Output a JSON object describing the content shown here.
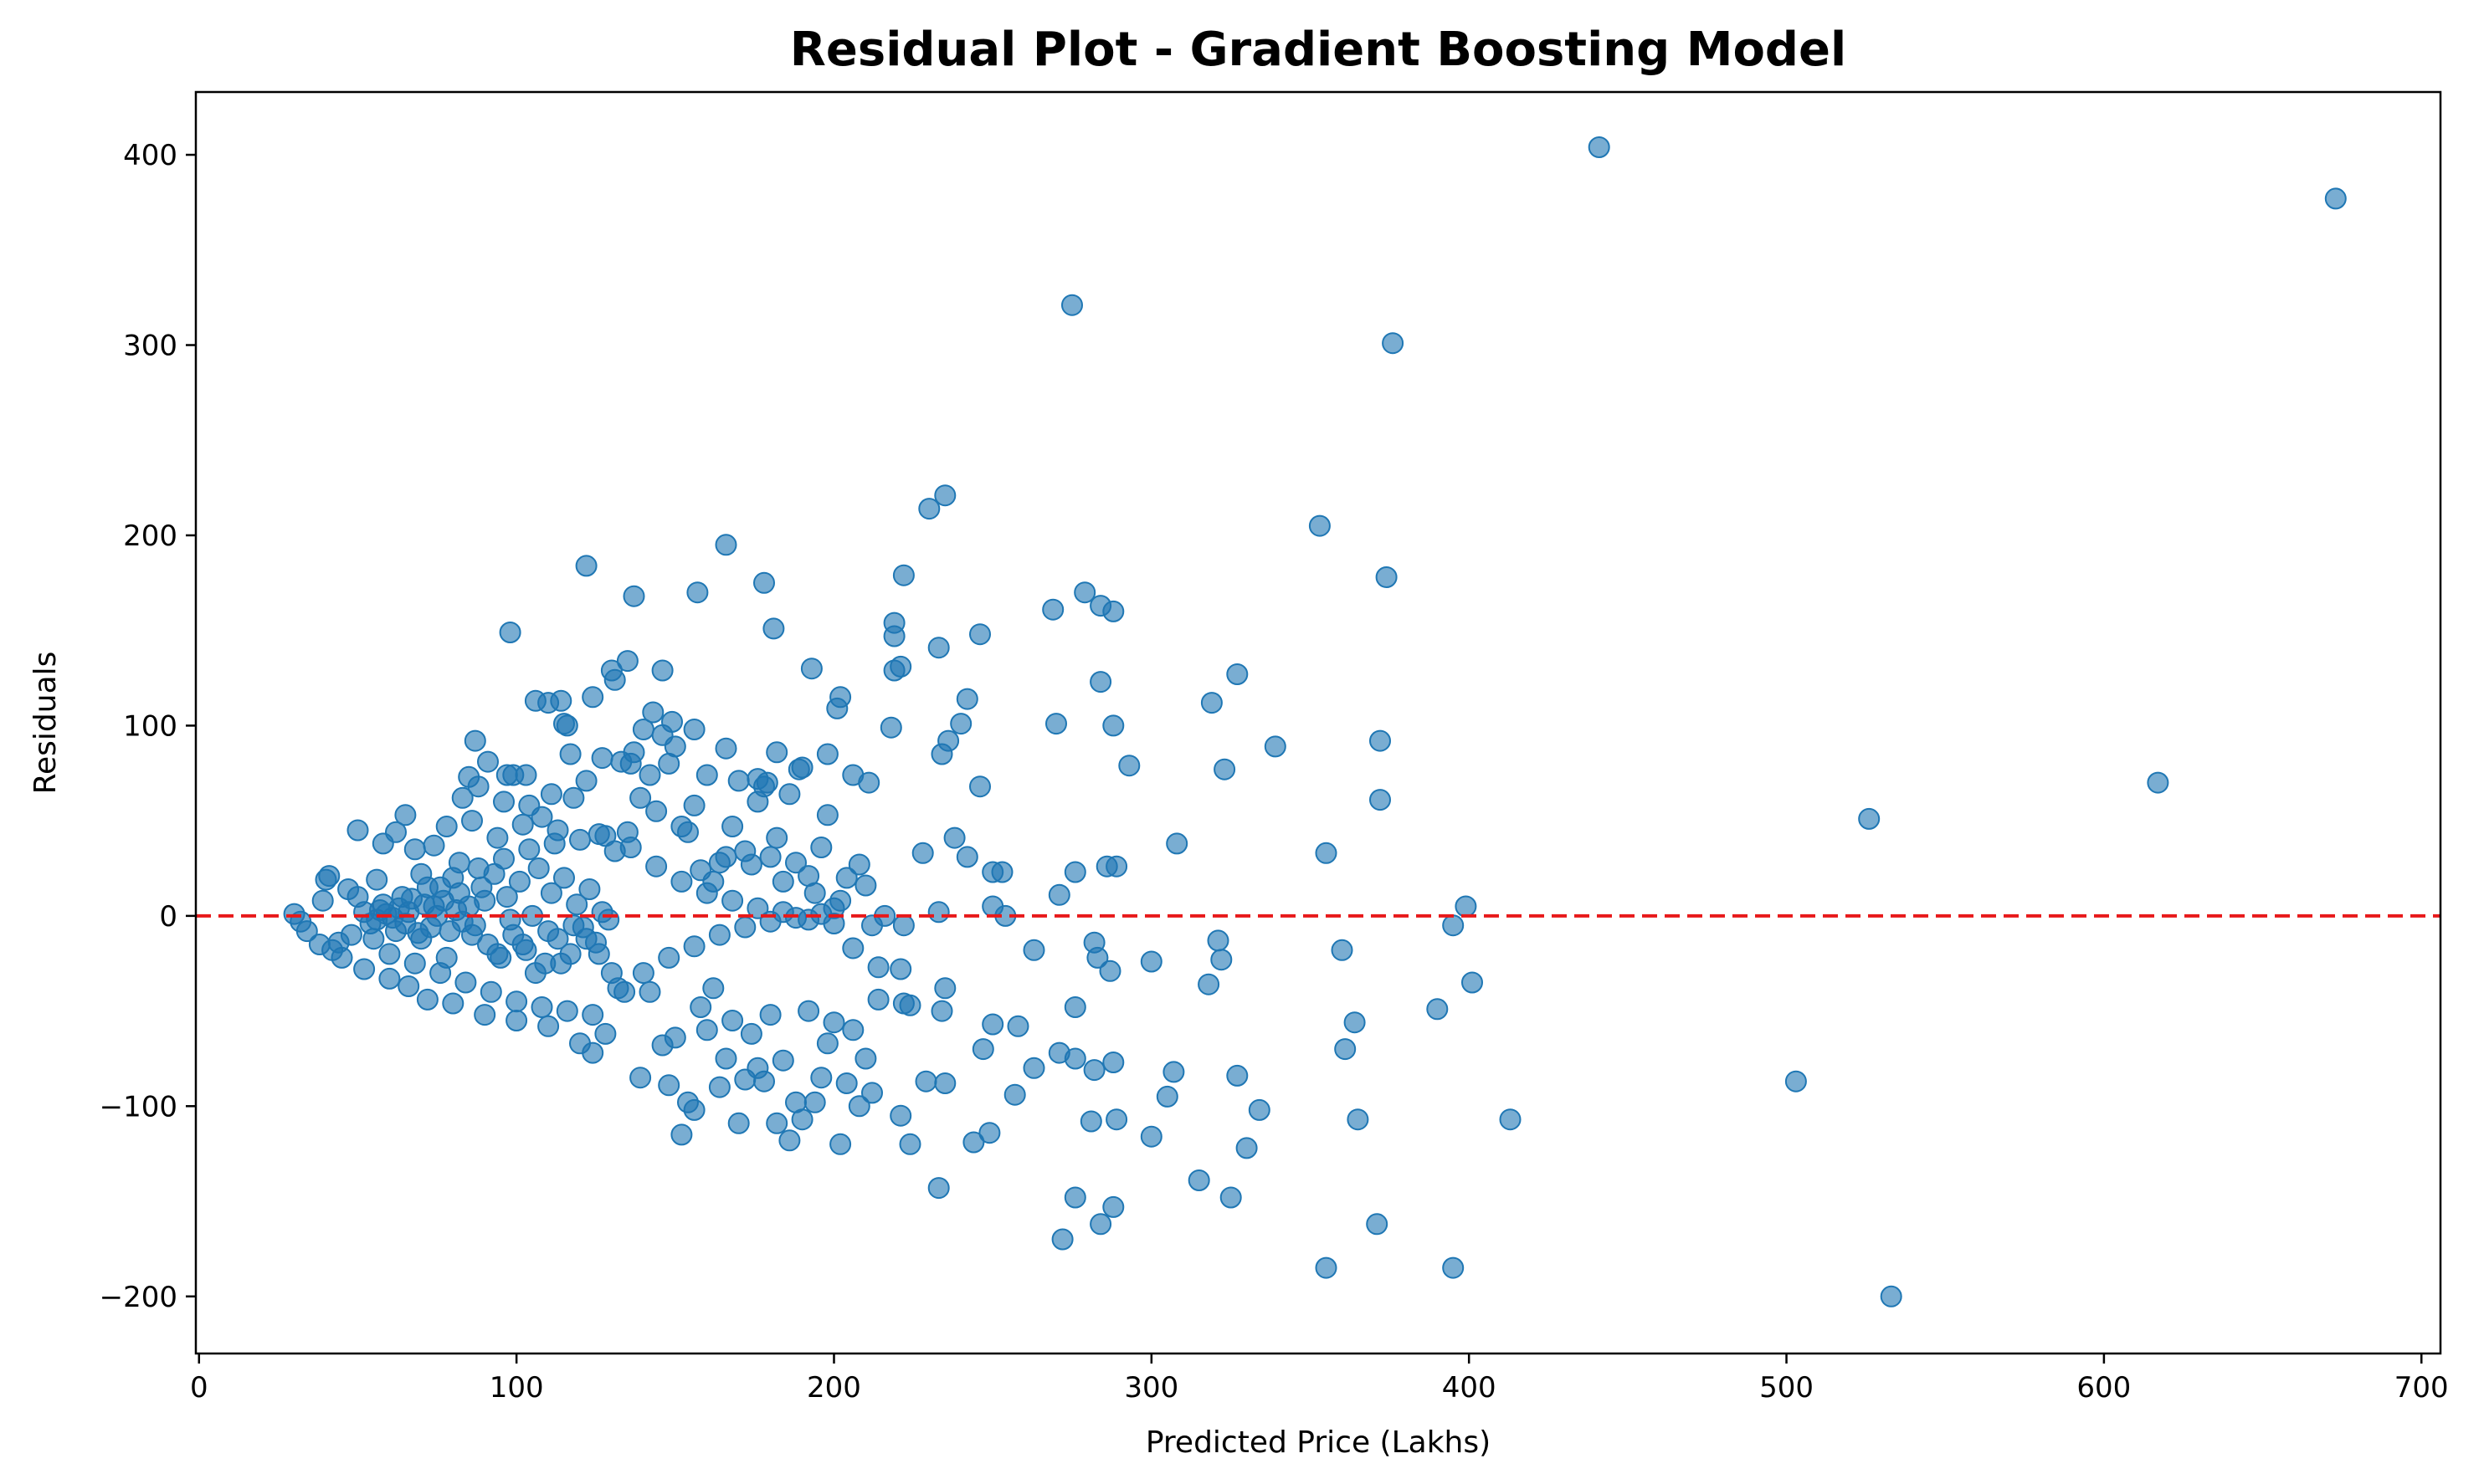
{
  "chart_data": {
    "type": "scatter",
    "title": "Residual Plot - Gradient Boosting Model",
    "xlabel": "Predicted Price (Lakhs)",
    "ylabel": "Residuals",
    "xlim": [
      -1,
      706
    ],
    "ylim": [
      -230,
      433
    ],
    "xticks": [
      0,
      100,
      200,
      300,
      400,
      500,
      600,
      700
    ],
    "yticks": [
      -200,
      -100,
      0,
      100,
      200,
      300,
      400
    ],
    "xtick_labels": [
      "0",
      "100",
      "200",
      "300",
      "400",
      "500",
      "600",
      "700"
    ],
    "ytick_labels": [
      "−200",
      "−100",
      "0",
      "100",
      "200",
      "300",
      "400"
    ],
    "grid": false,
    "reference_line": {
      "y": 0,
      "style": "dashed",
      "color": "#e8191a"
    },
    "marker_color": "#1f77b4",
    "marker_alpha": 0.6,
    "points": [
      [
        441,
        404
      ],
      [
        673,
        377
      ],
      [
        275,
        321
      ],
      [
        376,
        301
      ],
      [
        353,
        205
      ],
      [
        235,
        221
      ],
      [
        230,
        214
      ],
      [
        166,
        195
      ],
      [
        122,
        184
      ],
      [
        178,
        175
      ],
      [
        157,
        170
      ],
      [
        279,
        170
      ],
      [
        374,
        178
      ],
      [
        222,
        179
      ],
      [
        137,
        168
      ],
      [
        284,
        163
      ],
      [
        269,
        161
      ],
      [
        288,
        160
      ],
      [
        219,
        154
      ],
      [
        98,
        149
      ],
      [
        181,
        151
      ],
      [
        219,
        147
      ],
      [
        246,
        148
      ],
      [
        233,
        141
      ],
      [
        135,
        134
      ],
      [
        130,
        129
      ],
      [
        146,
        129
      ],
      [
        193,
        130
      ],
      [
        219,
        129
      ],
      [
        221,
        131
      ],
      [
        327,
        127
      ],
      [
        131,
        124
      ],
      [
        284,
        123
      ],
      [
        124,
        115
      ],
      [
        110,
        112
      ],
      [
        114,
        113
      ],
      [
        202,
        115
      ],
      [
        242,
        114
      ],
      [
        319,
        112
      ],
      [
        201,
        109
      ],
      [
        240,
        101
      ],
      [
        116,
        100
      ],
      [
        143,
        107
      ],
      [
        149,
        102
      ],
      [
        156,
        98
      ],
      [
        270,
        101
      ],
      [
        288,
        100
      ],
      [
        218,
        99
      ],
      [
        339,
        89
      ],
      [
        372,
        92
      ],
      [
        236,
        92
      ],
      [
        234,
        85
      ],
      [
        293,
        79
      ],
      [
        323,
        77
      ],
      [
        87,
        92
      ],
      [
        99,
        74
      ],
      [
        103,
        74
      ],
      [
        127,
        83
      ],
      [
        136,
        80
      ],
      [
        166,
        88
      ],
      [
        176,
        72
      ],
      [
        179,
        70
      ],
      [
        182,
        86
      ],
      [
        189,
        77
      ],
      [
        198,
        85
      ],
      [
        206,
        74
      ],
      [
        211,
        70
      ],
      [
        246,
        68
      ],
      [
        617,
        70
      ],
      [
        526,
        51
      ],
      [
        372,
        61
      ],
      [
        308,
        38
      ],
      [
        355,
        33
      ],
      [
        228,
        33
      ],
      [
        238,
        41
      ],
      [
        242,
        31
      ],
      [
        250,
        23
      ],
      [
        253,
        23
      ],
      [
        276,
        23
      ],
      [
        286,
        26
      ],
      [
        289,
        26
      ],
      [
        271,
        11
      ],
      [
        399,
        5
      ],
      [
        233,
        2
      ],
      [
        250,
        5
      ],
      [
        254,
        0
      ],
      [
        395,
        -5
      ],
      [
        222,
        -5
      ],
      [
        263,
        -18
      ],
      [
        282,
        -14
      ],
      [
        283,
        -22
      ],
      [
        300,
        -24
      ],
      [
        287,
        -29
      ],
      [
        321,
        -13
      ],
      [
        322,
        -23
      ],
      [
        318,
        -36
      ],
      [
        360,
        -18
      ],
      [
        235,
        -38
      ],
      [
        234,
        -50
      ],
      [
        221,
        -28
      ],
      [
        222,
        -46
      ],
      [
        224,
        -47
      ],
      [
        276,
        -48
      ],
      [
        390,
        -49
      ],
      [
        401,
        -35
      ],
      [
        364,
        -56
      ],
      [
        361,
        -70
      ],
      [
        247,
        -70
      ],
      [
        250,
        -57
      ],
      [
        258,
        -58
      ],
      [
        263,
        -80
      ],
      [
        271,
        -72
      ],
      [
        276,
        -75
      ],
      [
        288,
        -77
      ],
      [
        282,
        -81
      ],
      [
        307,
        -82
      ],
      [
        327,
        -84
      ],
      [
        305,
        -95
      ],
      [
        334,
        -102
      ],
      [
        229,
        -87
      ],
      [
        235,
        -88
      ],
      [
        257,
        -94
      ],
      [
        503,
        -87
      ],
      [
        221,
        -105
      ],
      [
        281,
        -108
      ],
      [
        289,
        -107
      ],
      [
        300,
        -116
      ],
      [
        330,
        -122
      ],
      [
        249,
        -114
      ],
      [
        244,
        -119
      ],
      [
        224,
        -120
      ],
      [
        365,
        -107
      ],
      [
        413,
        -107
      ],
      [
        233,
        -143
      ],
      [
        276,
        -148
      ],
      [
        288,
        -153
      ],
      [
        272,
        -170
      ],
      [
        284,
        -162
      ],
      [
        315,
        -139
      ],
      [
        325,
        -148
      ],
      [
        371,
        -162
      ],
      [
        355,
        -185
      ],
      [
        395,
        -185
      ],
      [
        533,
        -200
      ],
      [
        30,
        1
      ],
      [
        32,
        -3
      ],
      [
        34,
        -8
      ],
      [
        39,
        8
      ],
      [
        40,
        19
      ],
      [
        41,
        21
      ],
      [
        38,
        -15
      ],
      [
        42,
        -18
      ],
      [
        45,
        -22
      ],
      [
        47,
        14
      ],
      [
        50,
        10
      ],
      [
        50,
        45
      ],
      [
        52,
        -28
      ],
      [
        55,
        -12
      ],
      [
        56,
        19
      ],
      [
        58,
        38
      ],
      [
        60,
        -33
      ],
      [
        62,
        44
      ],
      [
        65,
        53
      ],
      [
        66,
        -37
      ],
      [
        68,
        35
      ],
      [
        70,
        22
      ],
      [
        72,
        -44
      ],
      [
        74,
        37
      ],
      [
        76,
        15
      ],
      [
        78,
        47
      ],
      [
        80,
        -46
      ],
      [
        82,
        28
      ],
      [
        83,
        62
      ],
      [
        85,
        73
      ],
      [
        86,
        50
      ],
      [
        88,
        68
      ],
      [
        90,
        -52
      ],
      [
        91,
        81
      ],
      [
        94,
        41
      ],
      [
        96,
        60
      ],
      [
        97,
        74
      ],
      [
        100,
        -55
      ],
      [
        102,
        48
      ],
      [
        104,
        58
      ],
      [
        106,
        113
      ],
      [
        108,
        52
      ],
      [
        110,
        -58
      ],
      [
        111,
        64
      ],
      [
        113,
        45
      ],
      [
        115,
        101
      ],
      [
        117,
        85
      ],
      [
        118,
        62
      ],
      [
        120,
        -67
      ],
      [
        122,
        71
      ],
      [
        124,
        -72
      ],
      [
        126,
        43
      ],
      [
        128,
        -62
      ],
      [
        131,
        34
      ],
      [
        133,
        81
      ],
      [
        135,
        44
      ],
      [
        137,
        86
      ],
      [
        139,
        62
      ],
      [
        140,
        98
      ],
      [
        142,
        74
      ],
      [
        144,
        55
      ],
      [
        146,
        95
      ],
      [
        148,
        80
      ],
      [
        150,
        89
      ],
      [
        152,
        47
      ],
      [
        154,
        44
      ],
      [
        156,
        58
      ],
      [
        158,
        24
      ],
      [
        160,
        74
      ],
      [
        162,
        18
      ],
      [
        164,
        28
      ],
      [
        166,
        31
      ],
      [
        168,
        47
      ],
      [
        170,
        71
      ],
      [
        172,
        34
      ],
      [
        174,
        27
      ],
      [
        176,
        60
      ],
      [
        178,
        68
      ],
      [
        180,
        31
      ],
      [
        182,
        41
      ],
      [
        184,
        18
      ],
      [
        186,
        64
      ],
      [
        188,
        28
      ],
      [
        190,
        78
      ],
      [
        192,
        21
      ],
      [
        194,
        12
      ],
      [
        196,
        36
      ],
      [
        198,
        53
      ],
      [
        200,
        4
      ],
      [
        202,
        8
      ],
      [
        204,
        20
      ],
      [
        206,
        -17
      ],
      [
        208,
        27
      ],
      [
        210,
        16
      ],
      [
        212,
        -5
      ],
      [
        214,
        -27
      ],
      [
        216,
        0
      ],
      [
        134,
        -40
      ],
      [
        139,
        -85
      ],
      [
        142,
        -40
      ],
      [
        146,
        -68
      ],
      [
        148,
        -89
      ],
      [
        150,
        -64
      ],
      [
        152,
        -115
      ],
      [
        154,
        -98
      ],
      [
        156,
        -102
      ],
      [
        158,
        -48
      ],
      [
        160,
        -60
      ],
      [
        162,
        -38
      ],
      [
        164,
        -90
      ],
      [
        166,
        -75
      ],
      [
        168,
        -55
      ],
      [
        170,
        -109
      ],
      [
        172,
        -86
      ],
      [
        174,
        -62
      ],
      [
        176,
        -80
      ],
      [
        178,
        -87
      ],
      [
        180,
        -52
      ],
      [
        182,
        -109
      ],
      [
        184,
        -76
      ],
      [
        186,
        -118
      ],
      [
        188,
        -98
      ],
      [
        190,
        -107
      ],
      [
        192,
        -50
      ],
      [
        194,
        -98
      ],
      [
        196,
        -85
      ],
      [
        198,
        -67
      ],
      [
        200,
        -56
      ],
      [
        202,
        -120
      ],
      [
        204,
        -88
      ],
      [
        206,
        -60
      ],
      [
        208,
        -100
      ],
      [
        210,
        -75
      ],
      [
        212,
        -93
      ],
      [
        214,
        -44
      ],
      [
        130,
        -30
      ],
      [
        126,
        -20
      ],
      [
        122,
        -12
      ],
      [
        118,
        -5
      ],
      [
        114,
        -25
      ],
      [
        110,
        -8
      ],
      [
        106,
        -30
      ],
      [
        102,
        -15
      ],
      [
        98,
        -2
      ],
      [
        94,
        -20
      ],
      [
        90,
        8
      ],
      [
        86,
        -10
      ],
      [
        82,
        12
      ],
      [
        78,
        -22
      ],
      [
        74,
        5
      ],
      [
        70,
        -12
      ],
      [
        66,
        2
      ],
      [
        62,
        -8
      ],
      [
        58,
        6
      ],
      [
        54,
        -4
      ],
      [
        48,
        -10
      ],
      [
        44,
        -14
      ],
      [
        52,
        2
      ],
      [
        60,
        -20
      ],
      [
        64,
        10
      ],
      [
        68,
        -25
      ],
      [
        72,
        15
      ],
      [
        76,
        -30
      ],
      [
        80,
        20
      ],
      [
        84,
        -35
      ],
      [
        88,
        25
      ],
      [
        92,
        -40
      ],
      [
        96,
        30
      ],
      [
        100,
        -45
      ],
      [
        104,
        35
      ],
      [
        108,
        -48
      ],
      [
        112,
        38
      ],
      [
        116,
        -50
      ],
      [
        120,
        40
      ],
      [
        124,
        -52
      ],
      [
        128,
        42
      ],
      [
        132,
        -38
      ],
      [
        136,
        36
      ],
      [
        140,
        -30
      ],
      [
        144,
        26
      ],
      [
        148,
        -22
      ],
      [
        152,
        18
      ],
      [
        156,
        -16
      ],
      [
        160,
        12
      ],
      [
        164,
        -10
      ],
      [
        168,
        8
      ],
      [
        172,
        -6
      ],
      [
        176,
        4
      ],
      [
        180,
        -3
      ],
      [
        184,
        2
      ],
      [
        188,
        -1
      ],
      [
        192,
        -2
      ],
      [
        196,
        1
      ],
      [
        200,
        -4
      ],
      [
        85,
        5
      ],
      [
        87,
        -5
      ],
      [
        89,
        15
      ],
      [
        91,
        -15
      ],
      [
        93,
        22
      ],
      [
        95,
        -22
      ],
      [
        97,
        10
      ],
      [
        99,
        -10
      ],
      [
        101,
        18
      ],
      [
        103,
        -18
      ],
      [
        105,
        0
      ],
      [
        107,
        25
      ],
      [
        109,
        -25
      ],
      [
        111,
        12
      ],
      [
        113,
        -12
      ],
      [
        115,
        20
      ],
      [
        117,
        -20
      ],
      [
        119,
        6
      ],
      [
        121,
        -6
      ],
      [
        123,
        14
      ],
      [
        125,
        -14
      ],
      [
        127,
        2
      ],
      [
        129,
        -2
      ],
      [
        75,
        0
      ],
      [
        77,
        8
      ],
      [
        79,
        -8
      ],
      [
        81,
        3
      ],
      [
        83,
        -3
      ],
      [
        71,
        6
      ],
      [
        73,
        -6
      ],
      [
        67,
        9
      ],
      [
        69,
        -9
      ],
      [
        63,
        4
      ],
      [
        65,
        -4
      ],
      [
        59,
        1
      ],
      [
        61,
        -1
      ],
      [
        56,
        -2
      ],
      [
        57,
        3
      ]
    ]
  }
}
